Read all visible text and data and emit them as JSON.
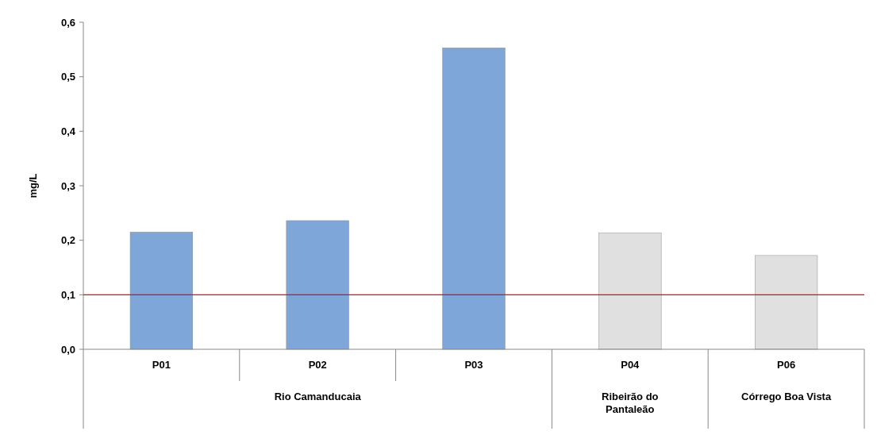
{
  "chart_data": {
    "type": "bar",
    "ylabel": "mg/L",
    "categories": [
      "P01",
      "P02",
      "P03",
      "P04",
      "P06"
    ],
    "values": [
      0.215,
      0.236,
      0.553,
      0.213,
      0.172
    ],
    "colors": [
      "#7ea6d8",
      "#7ea6d8",
      "#7ea6d8",
      "#e0e0e0",
      "#e0e0e0"
    ],
    "ylim": [
      0,
      0.6
    ],
    "yticks": [
      {
        "value": 0,
        "label": "0,0"
      },
      {
        "value": 0.1,
        "label": "0,1"
      },
      {
        "value": 0.2,
        "label": "0,2"
      },
      {
        "value": 0.3,
        "label": "0,3"
      },
      {
        "value": 0.4,
        "label": "0,4"
      },
      {
        "value": 0.5,
        "label": "0,5"
      },
      {
        "value": 0.6,
        "label": "0,6"
      }
    ],
    "ref_lines": [
      {
        "axis": "y",
        "value": 0.1,
        "color": "#ff0000"
      }
    ],
    "annotations": [
      "Rio Camanducaia",
      "Ribeirão do Pantaleão",
      "Córrego Boa Vista"
    ],
    "grid": false
  }
}
